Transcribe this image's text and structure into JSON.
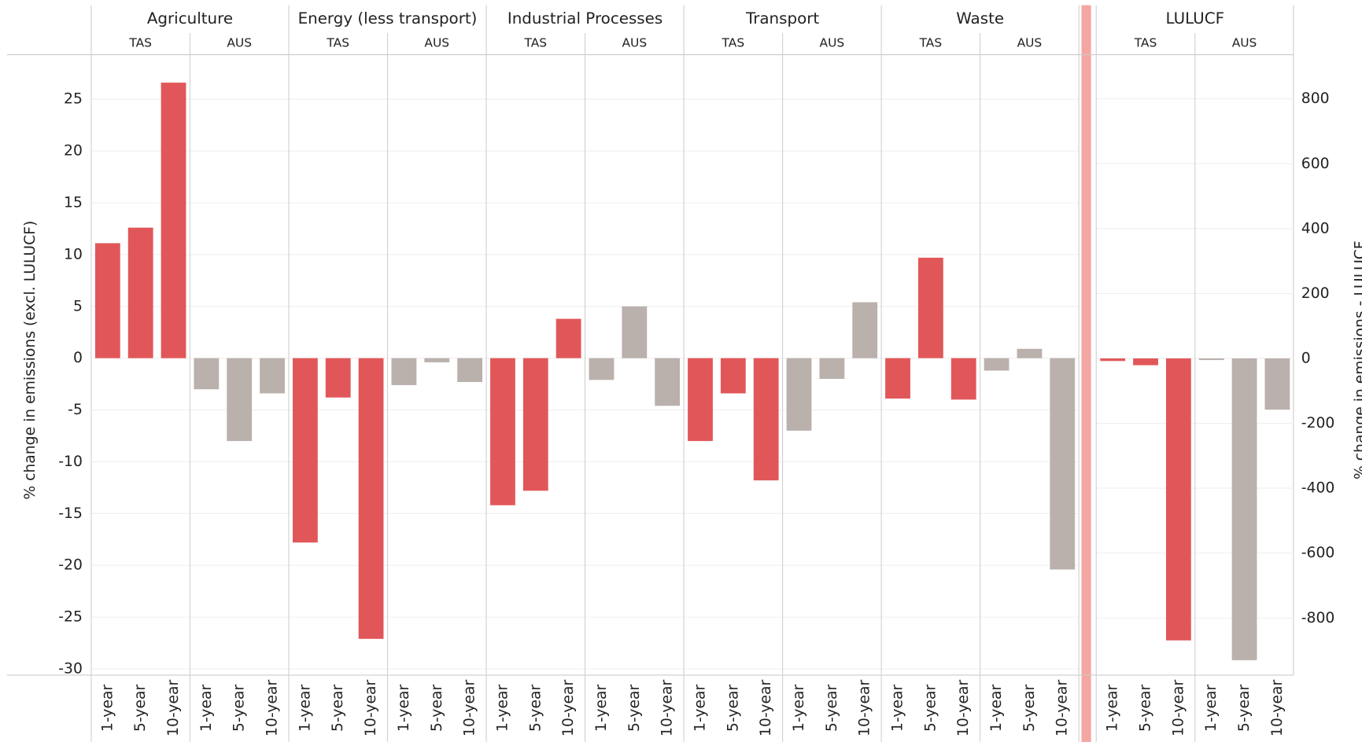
{
  "chart_data": {
    "type": "bar",
    "y_label": "% change in emissions (excl. LULUCF)",
    "y2_label": "% change in emissions - LULUCF",
    "ylim": [
      -30.6,
      29.3
    ],
    "yticks": [
      -30,
      -25,
      -20,
      -15,
      -10,
      -5,
      0,
      5,
      10,
      15,
      20,
      25
    ],
    "y2lim": [
      -976,
      936
    ],
    "y2ticks": [
      -800,
      -600,
      -400,
      -200,
      0,
      200,
      400,
      600,
      800
    ],
    "grid": true,
    "categories": [
      "1-year",
      "5-year",
      "10-year"
    ],
    "panels": [
      {
        "name": "Agriculture",
        "axis": "y",
        "groups": [
          {
            "name": "TAS",
            "color": "#e15759",
            "values": [
              11.1,
              12.6,
              26.6
            ]
          },
          {
            "name": "AUS",
            "color": "#bab0ac",
            "values": [
              -3.0,
              -8.0,
              -3.4
            ]
          }
        ]
      },
      {
        "name": "Energy (less transport)",
        "axis": "y",
        "groups": [
          {
            "name": "TAS",
            "color": "#e15759",
            "values": [
              -17.8,
              -3.8,
              -27.1
            ]
          },
          {
            "name": "AUS",
            "color": "#bab0ac",
            "values": [
              -2.6,
              -0.4,
              -2.3
            ]
          }
        ]
      },
      {
        "name": "Industrial Processes",
        "axis": "y",
        "groups": [
          {
            "name": "TAS",
            "color": "#e15759",
            "values": [
              -14.2,
              -12.8,
              3.8
            ]
          },
          {
            "name": "AUS",
            "color": "#bab0ac",
            "values": [
              -2.1,
              5.0,
              -4.6
            ]
          }
        ]
      },
      {
        "name": "Transport",
        "axis": "y",
        "groups": [
          {
            "name": "TAS",
            "color": "#e15759",
            "values": [
              -8.0,
              -3.4,
              -11.8
            ]
          },
          {
            "name": "AUS",
            "color": "#bab0ac",
            "values": [
              -7.0,
              -2.0,
              5.4
            ]
          }
        ]
      },
      {
        "name": "Waste",
        "axis": "y",
        "groups": [
          {
            "name": "TAS",
            "color": "#e15759",
            "values": [
              -3.9,
              9.7,
              -4.0
            ]
          },
          {
            "name": "AUS",
            "color": "#bab0ac",
            "values": [
              -1.2,
              0.9,
              -20.4
            ]
          }
        ]
      },
      {
        "name": "LULUCF",
        "axis": "y2",
        "groups": [
          {
            "name": "TAS",
            "color": "#e15759",
            "values": [
              -8,
              -21,
              -869
            ]
          },
          {
            "name": "AUS",
            "color": "#bab0ac",
            "values": [
              -5,
              -930,
              -158
            ]
          }
        ]
      }
    ]
  }
}
